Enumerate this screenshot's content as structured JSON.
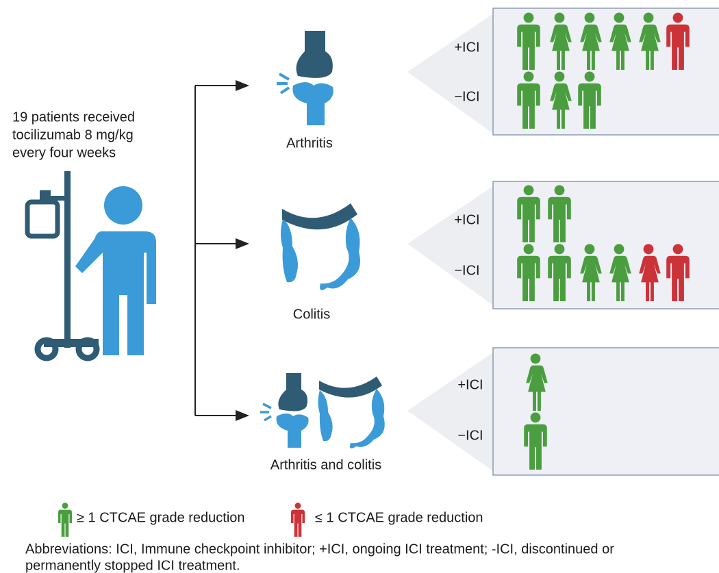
{
  "intro": {
    "lines": [
      "19 patients received",
      "tocilizumab 8 mg/kg",
      "every four weeks"
    ]
  },
  "branches": [
    {
      "label": "Arthritis",
      "rows": [
        {
          "label": "+ICI"
        },
        {
          "label": "−ICI"
        }
      ]
    },
    {
      "label": "Colitis",
      "rows": [
        {
          "label": "+ICI"
        },
        {
          "label": "−ICI"
        }
      ]
    },
    {
      "label": "Arthritis and colitis",
      "rows": [
        {
          "label": "+ICI"
        },
        {
          "label": "−ICI"
        }
      ]
    }
  ],
  "legend": [
    {
      "label": "≥ 1 CTCAE grade reduction"
    },
    {
      "label": "≤ 1 CTCAE grade reduction"
    }
  ],
  "footnote": {
    "lines": [
      "Abbreviations: ICI, Immune checkpoint inhibitor; +ICI, ongoing ICI treatment; -ICI, discontinued or",
      "permanently stopped ICI treatment."
    ]
  }
}
